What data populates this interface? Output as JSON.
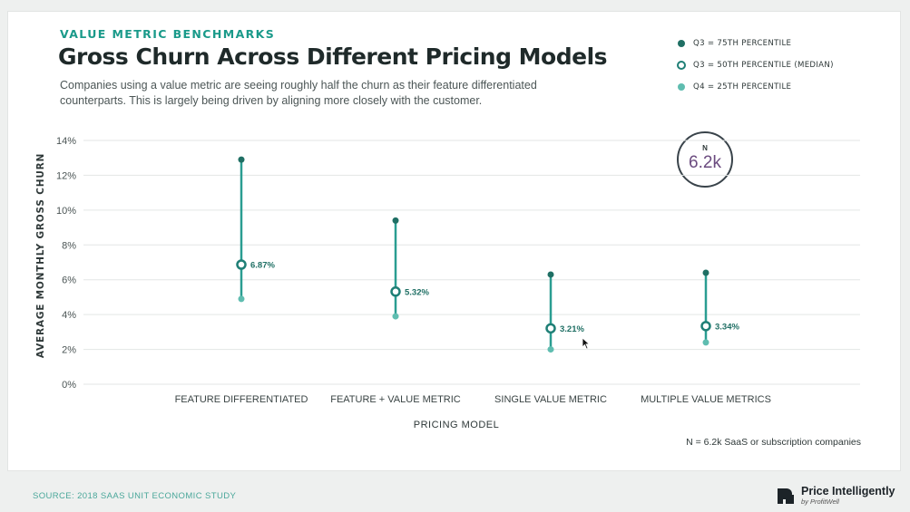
{
  "header": {
    "eyebrow": "VALUE METRIC BENCHMARKS",
    "title": "Gross Churn Across Different Pricing Models",
    "subtitle": "Companies using a value metric are seeing roughly half the churn as their feature differentiated counterparts. This is largely being driven by aligning more closely with the customer."
  },
  "legend": {
    "items": [
      {
        "label": "Q3 = 75TH PERCENTILE",
        "style": "dot",
        "color": "#1f6f64"
      },
      {
        "label": "Q3 = 50TH PERCENTILE (MEDIAN)",
        "style": "ring",
        "color": "#1f7f76"
      },
      {
        "label": "Q4 = 25TH PERCENTILE",
        "style": "dot",
        "color": "#5fbdb0"
      }
    ]
  },
  "badge": {
    "label": "N",
    "value": "6.2k"
  },
  "footnote": "N = 6.2k SaaS or subscription companies",
  "source": "SOURCE: 2018 SAAS UNIT ECONOMIC STUDY",
  "brand": {
    "name": "Price Intelligently",
    "sub": "by ProfitWell"
  },
  "colors": {
    "accent": "#1a9a8a",
    "line": "#2a9d91",
    "q75": "#1f6f64",
    "median": "#1f7f76",
    "q25": "#5fbdb0",
    "badge_value": "#6b4b7f"
  },
  "chart_data": {
    "type": "scatter",
    "title": "Gross Churn Across Different Pricing Models",
    "xlabel": "PRICING MODEL",
    "ylabel": "AVERAGE MONTHLY GROSS CHURN",
    "ylim": [
      0,
      14
    ],
    "yticks": [
      "0%",
      "2%",
      "4%",
      "6%",
      "8%",
      "10%",
      "12%",
      "14%"
    ],
    "grid": true,
    "legend_position": "top-right",
    "categories": [
      "FEATURE DIFFERENTIATED",
      "FEATURE + VALUE METRIC",
      "SINGLE VALUE METRIC",
      "MULTIPLE VALUE METRICS"
    ],
    "series": [
      {
        "name": "Q3 = 75TH PERCENTILE",
        "values": [
          12.9,
          9.4,
          6.3,
          6.4
        ]
      },
      {
        "name": "Q3 = 50TH PERCENTILE (MEDIAN)",
        "values": [
          6.87,
          5.32,
          3.21,
          3.34
        ]
      },
      {
        "name": "Q4 = 25TH PERCENTILE",
        "values": [
          4.9,
          3.9,
          2.0,
          2.4
        ]
      }
    ],
    "median_labels": [
      "6.87%",
      "5.32%",
      "3.21%",
      "3.34%"
    ]
  }
}
